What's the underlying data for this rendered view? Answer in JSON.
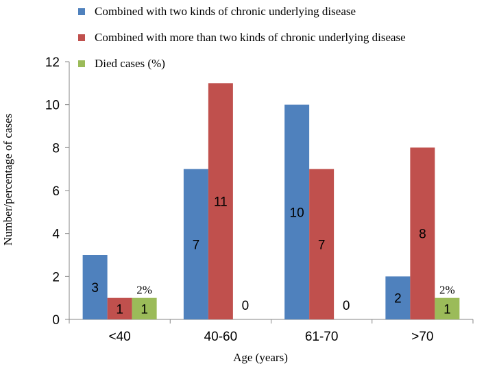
{
  "chart_data": {
    "type": "bar",
    "title": "",
    "xlabel": "Age (years)",
    "ylabel": "Number/percentage of cases",
    "ylim": [
      0,
      12
    ],
    "yticks": [
      0,
      2,
      4,
      6,
      8,
      10,
      12
    ],
    "grid": false,
    "legend_position": "top",
    "categories": [
      "<40",
      "40-60",
      "61-70",
      ">70"
    ],
    "series": [
      {
        "name": "Combined with two kinds of chronic underlying disease",
        "color": "#4F81BD",
        "values": [
          3,
          7,
          10,
          2
        ],
        "labels": [
          "3",
          "7",
          "10",
          "2"
        ]
      },
      {
        "name": "Combined with more than two kinds of chronic underlying disease",
        "color": "#C0504D",
        "values": [
          1,
          11,
          7,
          8
        ],
        "labels": [
          "1",
          "11",
          "7",
          "8"
        ]
      },
      {
        "name": "Died cases (%)",
        "color": "#9BBB59",
        "values": [
          1,
          0,
          0,
          1
        ],
        "labels": [
          "1",
          "0",
          "0",
          "1"
        ]
      }
    ],
    "annotations": [
      {
        "category": "<40",
        "series": 2,
        "text": "2%"
      },
      {
        "category": ">70",
        "series": 2,
        "text": "2%"
      }
    ]
  }
}
